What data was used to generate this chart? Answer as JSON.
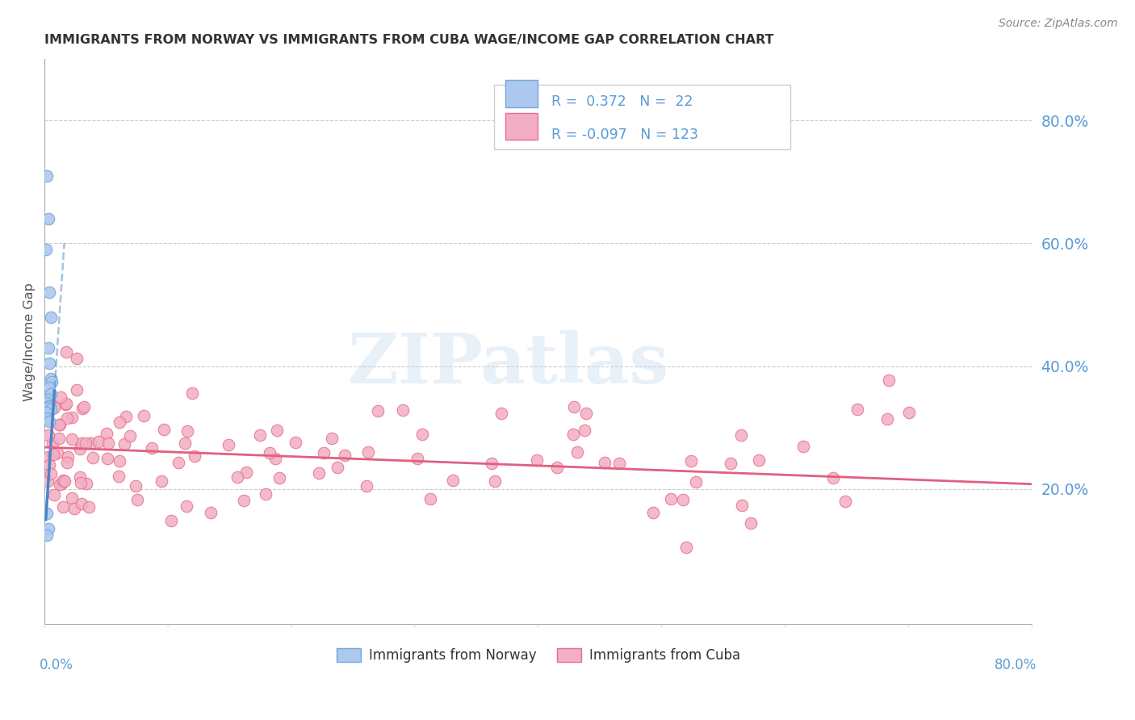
{
  "title": "IMMIGRANTS FROM NORWAY VS IMMIGRANTS FROM CUBA WAGE/INCOME GAP CORRELATION CHART",
  "source": "Source: ZipAtlas.com",
  "ylabel": "Wage/Income Gap",
  "norway_R": 0.372,
  "norway_N": 22,
  "cuba_R": -0.097,
  "cuba_N": 123,
  "norway_color": "#adc8ee",
  "cuba_color": "#f2aec4",
  "norway_edge_color": "#6fa8dc",
  "cuba_edge_color": "#e8708c",
  "norway_line_color": "#4a86c8",
  "cuba_line_color": "#e06080",
  "right_tick_color": "#5b9bd5",
  "watermark": "ZIPatlas",
  "xlim": [
    0.0,
    0.8
  ],
  "ylim": [
    -0.02,
    0.9
  ],
  "right_yticks": [
    0.2,
    0.4,
    0.6,
    0.8
  ],
  "right_ytick_labels": [
    "20.0%",
    "40.0%",
    "60.0%",
    "80.0%"
  ],
  "grid_color": "#cccccc",
  "grid_linestyle": "--",
  "norway_x": [
    0.002,
    0.003,
    0.001,
    0.004,
    0.005,
    0.003,
    0.004,
    0.005,
    0.006,
    0.004,
    0.005,
    0.003,
    0.002,
    0.004,
    0.003,
    0.005,
    0.001,
    0.002,
    0.004,
    0.002,
    0.003,
    0.002
  ],
  "norway_y": [
    0.71,
    0.64,
    0.59,
    0.52,
    0.48,
    0.43,
    0.405,
    0.38,
    0.375,
    0.365,
    0.355,
    0.345,
    0.34,
    0.335,
    0.332,
    0.33,
    0.325,
    0.315,
    0.31,
    0.16,
    0.135,
    0.125
  ],
  "legend_box_color": "#e8e8e8",
  "title_color": "#333333",
  "title_fontsize": 11.5,
  "source_color": "#888888"
}
